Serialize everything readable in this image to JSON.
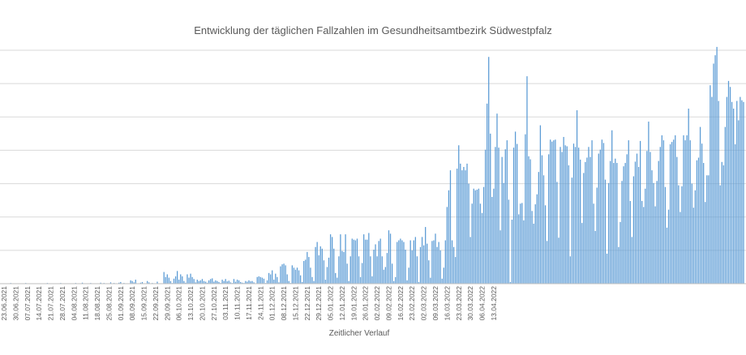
{
  "chart_data": {
    "type": "bar",
    "title": "Entwicklung der täglichen Fallzahlen im Gesundheitsamtbezirk Südwestpfalz",
    "xlabel": "Zeitlicher Verlauf",
    "ylabel": "",
    "grid": true,
    "legend": "none",
    "color": "#5b9bd5",
    "ylim": [
      0,
      700
    ],
    "yticks": [
      0,
      100,
      200,
      300,
      400,
      500,
      600,
      700
    ],
    "x_tick_labels": [
      "23.06.2021",
      "30.06.2021",
      "07.07.2021",
      "14.07.2021",
      "21.07.2021",
      "28.07.2021",
      "04.08.2021",
      "11.08.2021",
      "18.08.2021",
      "25.08.2021",
      "01.09.2021",
      "08.09.2021",
      "15.09.2021",
      "22.09.2021",
      "29.09.2021",
      "06.10.2021",
      "13.10.2021",
      "20.10.2021",
      "27.10.2021",
      "03.11.2021",
      "10.11.2021",
      "17.11.2021",
      "24.11.2021",
      "01.12.2021",
      "08.12.2021",
      "15.12.2021",
      "22.12.2021",
      "29.12.2021",
      "05.01.2022",
      "12.01.2022",
      "19.01.2022",
      "26.01.2022",
      "02.02.2022",
      "09.02.2022",
      "16.02.2022",
      "23.02.2022",
      "02.03.2022",
      "09.03.2022",
      "16.03.2022",
      "23.03.2022",
      "30.03.2022",
      "06.04.2022",
      "13.04.2022"
    ],
    "start_date": "2021-06-23",
    "values": [
      0,
      1,
      0,
      0,
      2,
      0,
      1,
      0,
      0,
      0,
      1,
      0,
      0,
      2,
      1,
      0,
      0,
      1,
      0,
      0,
      0,
      1,
      0,
      1,
      0,
      0,
      2,
      0,
      1,
      0,
      0,
      1,
      0,
      0,
      2,
      0,
      1,
      0,
      0,
      0,
      0,
      1,
      0,
      2,
      1,
      0,
      0,
      3,
      0,
      1,
      0,
      0,
      2,
      1,
      0,
      1,
      0,
      0,
      3,
      0,
      2,
      0,
      1,
      0,
      4,
      0,
      2,
      1,
      0,
      3,
      5,
      0,
      2,
      1,
      0,
      0,
      10,
      8,
      4,
      12,
      0,
      1,
      3,
      5,
      1,
      0,
      8,
      4,
      1,
      2,
      0,
      0,
      6,
      0,
      1,
      0,
      35,
      20,
      28,
      18,
      8,
      2,
      15,
      22,
      38,
      12,
      28,
      22,
      8,
      3,
      28,
      18,
      30,
      20,
      14,
      4,
      12,
      8,
      10,
      14,
      8,
      6,
      3,
      10,
      14,
      16,
      6,
      10,
      8,
      5,
      2,
      12,
      8,
      14,
      7,
      9,
      4,
      2,
      14,
      6,
      12,
      10,
      5,
      3,
      2,
      8,
      6,
      10,
      7,
      8,
      4,
      1,
      20,
      22,
      20,
      18,
      15,
      2,
      10,
      32,
      28,
      40,
      12,
      30,
      20,
      4,
      52,
      58,
      60,
      55,
      28,
      8,
      2,
      55,
      48,
      42,
      48,
      40,
      25,
      5,
      68,
      72,
      95,
      80,
      48,
      20,
      8,
      110,
      125,
      85,
      112,
      105,
      70,
      12,
      50,
      78,
      148,
      140,
      105,
      32,
      18,
      82,
      148,
      98,
      95,
      148,
      60,
      8,
      82,
      135,
      132,
      130,
      135,
      82,
      20,
      62,
      148,
      132,
      132,
      152,
      82,
      22,
      102,
      118,
      82,
      128,
      135,
      82,
      42,
      50,
      92,
      160,
      150,
      60,
      8,
      20,
      125,
      130,
      135,
      130,
      125,
      102,
      10,
      48,
      130,
      100,
      130,
      140,
      82,
      5,
      110,
      140,
      115,
      170,
      120,
      70,
      18,
      128,
      130,
      150,
      110,
      125,
      100,
      15,
      48,
      130,
      230,
      280,
      340,
      130,
      110,
      80,
      345,
      415,
      360,
      340,
      350,
      340,
      360,
      300,
      140,
      240,
      285,
      280,
      282,
      285,
      240,
      212,
      290,
      402,
      540,
      680,
      450,
      260,
      285,
      410,
      510,
      408,
      160,
      380,
      302,
      403,
      430,
      252,
      5,
      192,
      408,
      456,
      419,
      208,
      240,
      242,
      190,
      448,
      622,
      382,
      373,
      218,
      180,
      238,
      268,
      335,
      475,
      385,
      325,
      235,
      128,
      388,
      432,
      426,
      430,
      432,
      305,
      138,
      410,
      395,
      440,
      415,
      412,
      355,
      82,
      318,
      420,
      410,
      520,
      408,
      372,
      182,
      332,
      365,
      378,
      410,
      380,
      430,
      240,
      158,
      288,
      390,
      402,
      432,
      422,
      312,
      90,
      302,
      368,
      460,
      362,
      375,
      362,
      110,
      185,
      308,
      352,
      362,
      388,
      430,
      248,
      140,
      322,
      366,
      390,
      350,
      428,
      248,
      230,
      285,
      398,
      486,
      395,
      340,
      302,
      232,
      308,
      368,
      410,
      445,
      430,
      290,
      168,
      222,
      418,
      425,
      432,
      445,
      380,
      295,
      215,
      292,
      445,
      430,
      445,
      525,
      430,
      300,
      228,
      280,
      370,
      378,
      470,
      420,
      362,
      245,
      325,
      325,
      595,
      560,
      660,
      685,
      710,
      548,
      295,
      365,
      355,
      470,
      560,
      608,
      590,
      545,
      525,
      418,
      548,
      490,
      560,
      550,
      545
    ]
  }
}
